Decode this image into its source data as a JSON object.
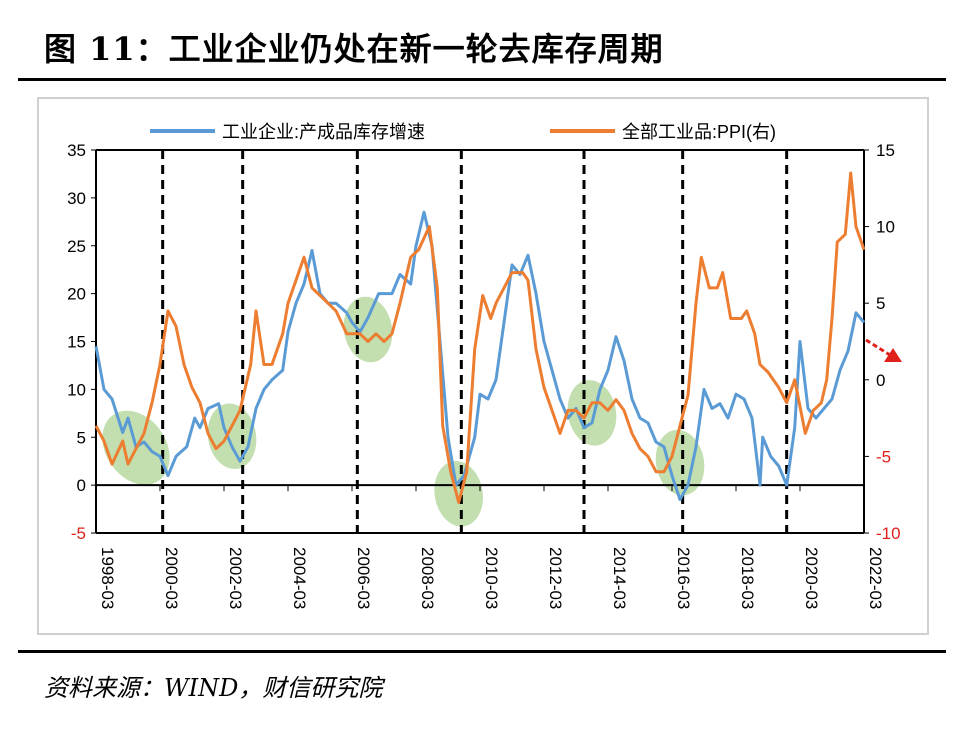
{
  "title": "图 11：工业企业仍处在新一轮去库存周期",
  "source": "资料来源：WIND，财信研究院",
  "colors": {
    "inventory": "#5b9bd5",
    "ppi": "#ed7d31",
    "highlight": "#a9d18e",
    "arrow": "#e0201b",
    "negative_tick": "#e0201b"
  },
  "chart_data": {
    "type": "line",
    "title": "",
    "legend_position": "top",
    "grid": false,
    "x_tick_labels": [
      "1998-03",
      "2000-03",
      "2002-03",
      "2004-03",
      "2006-03",
      "2008-03",
      "2010-03",
      "2012-03",
      "2014-03",
      "2016-03",
      "2018-03",
      "2020-03",
      "2022-03"
    ],
    "xlim": [
      "1998-03",
      "2022-03"
    ],
    "y_left": {
      "ylim": [
        -5,
        35
      ],
      "ticks": [
        35,
        30,
        25,
        20,
        15,
        10,
        5,
        0,
        -5
      ]
    },
    "y_right": {
      "ylim": [
        -10,
        15
      ],
      "ticks": [
        15,
        10,
        5,
        0,
        -5,
        -10
      ]
    },
    "cycle_markers": [
      "2000-04",
      "2002-10",
      "2006-05",
      "2009-08",
      "2013-06",
      "2016-07",
      "2019-10"
    ],
    "highlighted_troughs": [
      "1999-06",
      "2002-06",
      "2006-09",
      "2009-07",
      "2013-09",
      "2016-06"
    ],
    "series": [
      {
        "name": "工业企业:产成品库存增速",
        "axis": "left",
        "points": [
          [
            "1998-03",
            14.5
          ],
          [
            "1998-06",
            10
          ],
          [
            "1998-09",
            9
          ],
          [
            "1999-01",
            5.5
          ],
          [
            "1999-03",
            7
          ],
          [
            "1999-06",
            4
          ],
          [
            "1999-09",
            4.5
          ],
          [
            "1999-12",
            3.5
          ],
          [
            "2000-03",
            3
          ],
          [
            "2000-06",
            1
          ],
          [
            "2000-09",
            3
          ],
          [
            "2001-01",
            4
          ],
          [
            "2001-04",
            7
          ],
          [
            "2001-06",
            6
          ],
          [
            "2001-09",
            8
          ],
          [
            "2002-01",
            8.5
          ],
          [
            "2002-03",
            6
          ],
          [
            "2002-06",
            4
          ],
          [
            "2002-09",
            2.5
          ],
          [
            "2002-12",
            4
          ],
          [
            "2003-03",
            8
          ],
          [
            "2003-06",
            10
          ],
          [
            "2003-09",
            11
          ],
          [
            "2004-01",
            12
          ],
          [
            "2004-03",
            16
          ],
          [
            "2004-06",
            19
          ],
          [
            "2004-09",
            21
          ],
          [
            "2004-12",
            24.5
          ],
          [
            "2005-03",
            20
          ],
          [
            "2005-06",
            19
          ],
          [
            "2005-09",
            19
          ],
          [
            "2006-01",
            18
          ],
          [
            "2006-03",
            17
          ],
          [
            "2006-06",
            16
          ],
          [
            "2006-09",
            17.5
          ],
          [
            "2007-01",
            20
          ],
          [
            "2007-06",
            20
          ],
          [
            "2007-09",
            22
          ],
          [
            "2008-01",
            21
          ],
          [
            "2008-03",
            25
          ],
          [
            "2008-06",
            28.5
          ],
          [
            "2008-09",
            25
          ],
          [
            "2008-12",
            15
          ],
          [
            "2009-03",
            5
          ],
          [
            "2009-06",
            0
          ],
          [
            "2009-09",
            1
          ],
          [
            "2010-01",
            5
          ],
          [
            "2010-03",
            9.5
          ],
          [
            "2010-06",
            9
          ],
          [
            "2010-09",
            11
          ],
          [
            "2010-12",
            17
          ],
          [
            "2011-03",
            23
          ],
          [
            "2011-06",
            22
          ],
          [
            "2011-09",
            24
          ],
          [
            "2011-12",
            20
          ],
          [
            "2012-03",
            15
          ],
          [
            "2012-06",
            12
          ],
          [
            "2012-09",
            9
          ],
          [
            "2012-12",
            7
          ],
          [
            "2013-03",
            8
          ],
          [
            "2013-06",
            6
          ],
          [
            "2013-09",
            6.5
          ],
          [
            "2013-12",
            10
          ],
          [
            "2014-03",
            12
          ],
          [
            "2014-06",
            15.5
          ],
          [
            "2014-09",
            13
          ],
          [
            "2014-12",
            9
          ],
          [
            "2015-03",
            7
          ],
          [
            "2015-06",
            6.5
          ],
          [
            "2015-09",
            4.5
          ],
          [
            "2015-12",
            4
          ],
          [
            "2016-03",
            1
          ],
          [
            "2016-06",
            -1.5
          ],
          [
            "2016-09",
            0
          ],
          [
            "2016-12",
            4
          ],
          [
            "2017-03",
            10
          ],
          [
            "2017-06",
            8
          ],
          [
            "2017-09",
            8.5
          ],
          [
            "2017-12",
            7
          ],
          [
            "2018-03",
            9.5
          ],
          [
            "2018-06",
            9
          ],
          [
            "2018-09",
            7
          ],
          [
            "2018-12",
            0
          ],
          [
            "2019-01",
            5
          ],
          [
            "2019-04",
            3
          ],
          [
            "2019-07",
            2
          ],
          [
            "2019-10",
            0
          ],
          [
            "2020-01",
            6
          ],
          [
            "2020-03",
            15
          ],
          [
            "2020-06",
            8
          ],
          [
            "2020-09",
            7
          ],
          [
            "2020-12",
            8
          ],
          [
            "2021-03",
            9
          ],
          [
            "2021-06",
            12
          ],
          [
            "2021-09",
            14
          ],
          [
            "2021-12",
            18
          ],
          [
            "2022-03",
            17
          ]
        ]
      },
      {
        "name": "全部工业品:PPI(右)",
        "axis": "right",
        "points": [
          [
            "1998-03",
            -3
          ],
          [
            "1998-06",
            -4
          ],
          [
            "1998-09",
            -5.5
          ],
          [
            "1999-01",
            -4
          ],
          [
            "1999-03",
            -5.5
          ],
          [
            "1999-06",
            -4.5
          ],
          [
            "1999-09",
            -3.5
          ],
          [
            "1999-12",
            -1.5
          ],
          [
            "2000-03",
            1
          ],
          [
            "2000-06",
            4.5
          ],
          [
            "2000-09",
            3.5
          ],
          [
            "2000-12",
            1
          ],
          [
            "2001-03",
            -0.5
          ],
          [
            "2001-06",
            -1.5
          ],
          [
            "2001-09",
            -3.5
          ],
          [
            "2001-12",
            -4.5
          ],
          [
            "2002-03",
            -4
          ],
          [
            "2002-06",
            -3
          ],
          [
            "2002-09",
            -2
          ],
          [
            "2003-01",
            1
          ],
          [
            "2003-03",
            4.5
          ],
          [
            "2003-06",
            1
          ],
          [
            "2003-09",
            1
          ],
          [
            "2004-01",
            3
          ],
          [
            "2004-03",
            5
          ],
          [
            "2004-06",
            6.5
          ],
          [
            "2004-09",
            8
          ],
          [
            "2004-12",
            6
          ],
          [
            "2005-03",
            5.5
          ],
          [
            "2005-06",
            5
          ],
          [
            "2005-09",
            4.5
          ],
          [
            "2006-01",
            3
          ],
          [
            "2006-03",
            3
          ],
          [
            "2006-06",
            3
          ],
          [
            "2006-09",
            2.5
          ],
          [
            "2006-12",
            3
          ],
          [
            "2007-03",
            2.5
          ],
          [
            "2007-06",
            3
          ],
          [
            "2007-09",
            5
          ],
          [
            "2008-01",
            8
          ],
          [
            "2008-04",
            8.5
          ],
          [
            "2008-08",
            10
          ],
          [
            "2008-11",
            6
          ],
          [
            "2009-01",
            -3
          ],
          [
            "2009-04",
            -6
          ],
          [
            "2009-07",
            -8
          ],
          [
            "2009-10",
            -6
          ],
          [
            "2010-01",
            2
          ],
          [
            "2010-04",
            5.5
          ],
          [
            "2010-07",
            4
          ],
          [
            "2010-09",
            5
          ],
          [
            "2010-12",
            6
          ],
          [
            "2011-03",
            7
          ],
          [
            "2011-07",
            7
          ],
          [
            "2011-09",
            6.5
          ],
          [
            "2011-12",
            2
          ],
          [
            "2012-03",
            -0.5
          ],
          [
            "2012-06",
            -2
          ],
          [
            "2012-09",
            -3.5
          ],
          [
            "2012-12",
            -2
          ],
          [
            "2013-03",
            -2
          ],
          [
            "2013-06",
            -2.5
          ],
          [
            "2013-09",
            -1.5
          ],
          [
            "2013-12",
            -1.5
          ],
          [
            "2014-03",
            -2
          ],
          [
            "2014-06",
            -1.3
          ],
          [
            "2014-09",
            -2
          ],
          [
            "2014-12",
            -3.5
          ],
          [
            "2015-03",
            -4.5
          ],
          [
            "2015-06",
            -5
          ],
          [
            "2015-09",
            -6
          ],
          [
            "2015-12",
            -6
          ],
          [
            "2016-03",
            -5
          ],
          [
            "2016-06",
            -3
          ],
          [
            "2016-09",
            -1
          ],
          [
            "2016-12",
            5
          ],
          [
            "2017-02",
            8
          ],
          [
            "2017-05",
            6
          ],
          [
            "2017-08",
            6
          ],
          [
            "2017-10",
            7
          ],
          [
            "2018-01",
            4
          ],
          [
            "2018-05",
            4
          ],
          [
            "2018-07",
            4.5
          ],
          [
            "2018-10",
            3
          ],
          [
            "2018-12",
            1
          ],
          [
            "2019-03",
            0.5
          ],
          [
            "2019-07",
            -0.5
          ],
          [
            "2019-10",
            -1.5
          ],
          [
            "2020-01",
            0
          ],
          [
            "2020-05",
            -3.5
          ],
          [
            "2020-08",
            -2
          ],
          [
            "2020-11",
            -1.5
          ],
          [
            "2021-01",
            0
          ],
          [
            "2021-03",
            4
          ],
          [
            "2021-05",
            9
          ],
          [
            "2021-08",
            9.5
          ],
          [
            "2021-10",
            13.5
          ],
          [
            "2021-12",
            10
          ],
          [
            "2022-03",
            8.5
          ]
        ]
      }
    ]
  }
}
